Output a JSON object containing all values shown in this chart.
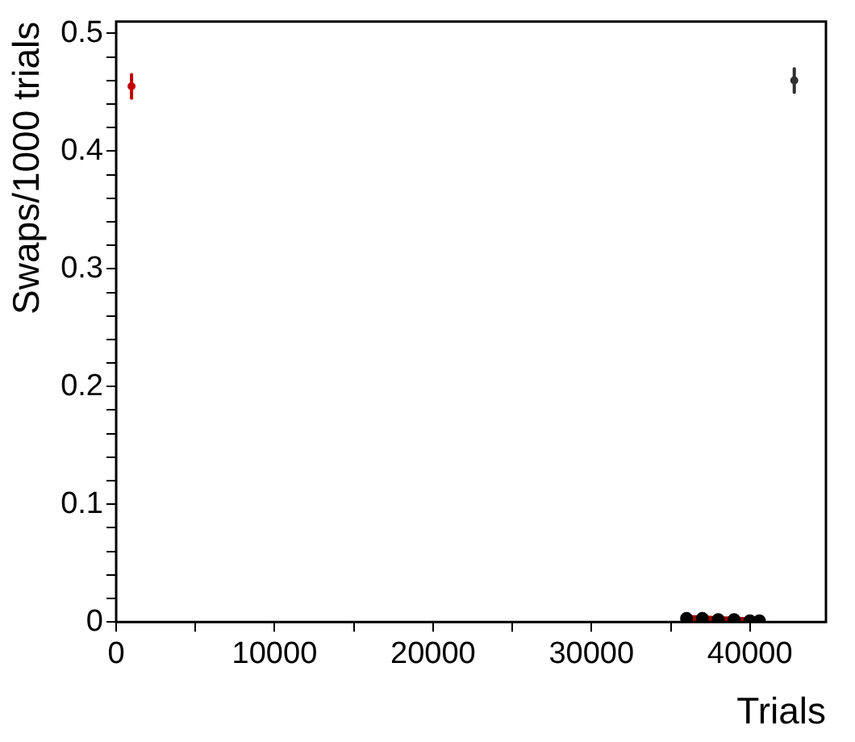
{
  "chart_data": {
    "type": "scatter",
    "xlabel": "Trials",
    "ylabel": "Swaps/1000 trials",
    "xlim": [
      0,
      44800
    ],
    "ylim": [
      0,
      0.51
    ],
    "xticks": [
      0,
      {
        "value": 5000,
        "label": null
      },
      10000,
      {
        "value": 15000,
        "label": null
      },
      20000,
      {
        "value": 25000,
        "label": null
      },
      30000,
      {
        "value": 35000,
        "label": null
      },
      40000
    ],
    "yticks": [
      0,
      {
        "value": 0.02,
        "label": null
      },
      {
        "value": 0.04,
        "label": null
      },
      {
        "value": 0.06,
        "label": null
      },
      {
        "value": 0.08,
        "label": null
      },
      0.1,
      {
        "value": 0.12,
        "label": null
      },
      {
        "value": 0.14,
        "label": null
      },
      {
        "value": 0.16,
        "label": null
      },
      {
        "value": 0.18,
        "label": null
      },
      0.2,
      {
        "value": 0.22,
        "label": null
      },
      {
        "value": 0.24,
        "label": null
      },
      {
        "value": 0.26,
        "label": null
      },
      {
        "value": 0.28,
        "label": null
      },
      0.3,
      {
        "value": 0.32,
        "label": null
      },
      {
        "value": 0.34,
        "label": null
      },
      {
        "value": 0.36,
        "label": null
      },
      {
        "value": 0.38,
        "label": null
      },
      0.4,
      {
        "value": 0.42,
        "label": null
      },
      {
        "value": 0.44,
        "label": null
      },
      {
        "value": 0.46,
        "label": null
      },
      {
        "value": 0.48,
        "label": null
      },
      0.5
    ],
    "grid": false,
    "legend": false,
    "marker": "circle",
    "series": [
      {
        "type": "line",
        "color": "#a00000",
        "x": [
          36000,
          37000,
          38000,
          39000,
          40000,
          40600
        ],
        "values": [
          0.003,
          0.003,
          0.002,
          0.002,
          0.001,
          0.001
        ]
      },
      {
        "color": "#c00000",
        "x": [
          970
        ],
        "values": [
          0.455
        ],
        "errors": [
          0.01
        ]
      },
      {
        "color": "#303030",
        "x": [
          42800
        ],
        "values": [
          0.46
        ],
        "errors": [
          0.01
        ]
      }
    ]
  }
}
